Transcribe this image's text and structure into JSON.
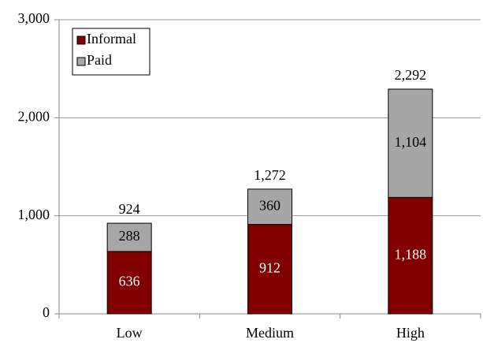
{
  "chart_data": {
    "type": "stacked_bar",
    "categories": [
      "Low",
      "Medium",
      "High"
    ],
    "series": [
      {
        "name": "Informal",
        "color": "#800000",
        "values": [
          636,
          912,
          1188
        ],
        "value_labels": [
          "636",
          "912",
          "1,188"
        ]
      },
      {
        "name": "Paid",
        "color": "#a6a6a6",
        "values": [
          288,
          360,
          1104
        ],
        "value_labels": [
          "288",
          "360",
          "1,104"
        ]
      }
    ],
    "totals": [
      924,
      1272,
      2292
    ],
    "total_labels": [
      "924",
      "1,272",
      "2,292"
    ],
    "ylim": [
      0,
      3000
    ],
    "yticks": [
      0,
      {
        "value": 1000,
        "label": "1,000"
      },
      {
        "value": 2000,
        "label": "2,000"
      },
      {
        "value": 3000,
        "label": "3,000"
      }
    ],
    "grid": true,
    "legend": "top-left"
  }
}
